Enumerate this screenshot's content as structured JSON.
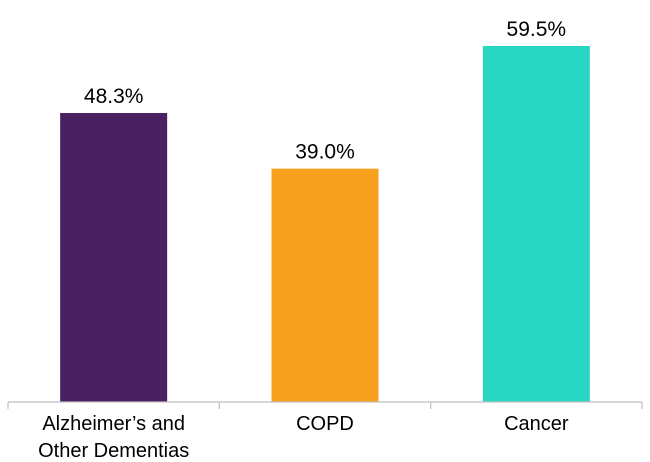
{
  "chart_data": {
    "type": "bar",
    "title": "",
    "xlabel": "",
    "ylabel": "",
    "ylim": [
      0,
      59.5
    ],
    "grid": false,
    "legend": "none",
    "categories": [
      "Alzheimer’s and Other Dementias",
      "COPD",
      "Cancer"
    ],
    "category_lines": [
      [
        "Alzheimer’s and",
        "Other Dementias"
      ],
      [
        "COPD"
      ],
      [
        "Cancer"
      ]
    ],
    "values": [
      48.3,
      39.0,
      59.5
    ],
    "value_labels": [
      "48.3%",
      "39.0%",
      "59.5%"
    ],
    "colors": [
      "#4a2060",
      "#f8a11f",
      "#27d6c3"
    ],
    "axis_color": "#bfbfbf"
  }
}
